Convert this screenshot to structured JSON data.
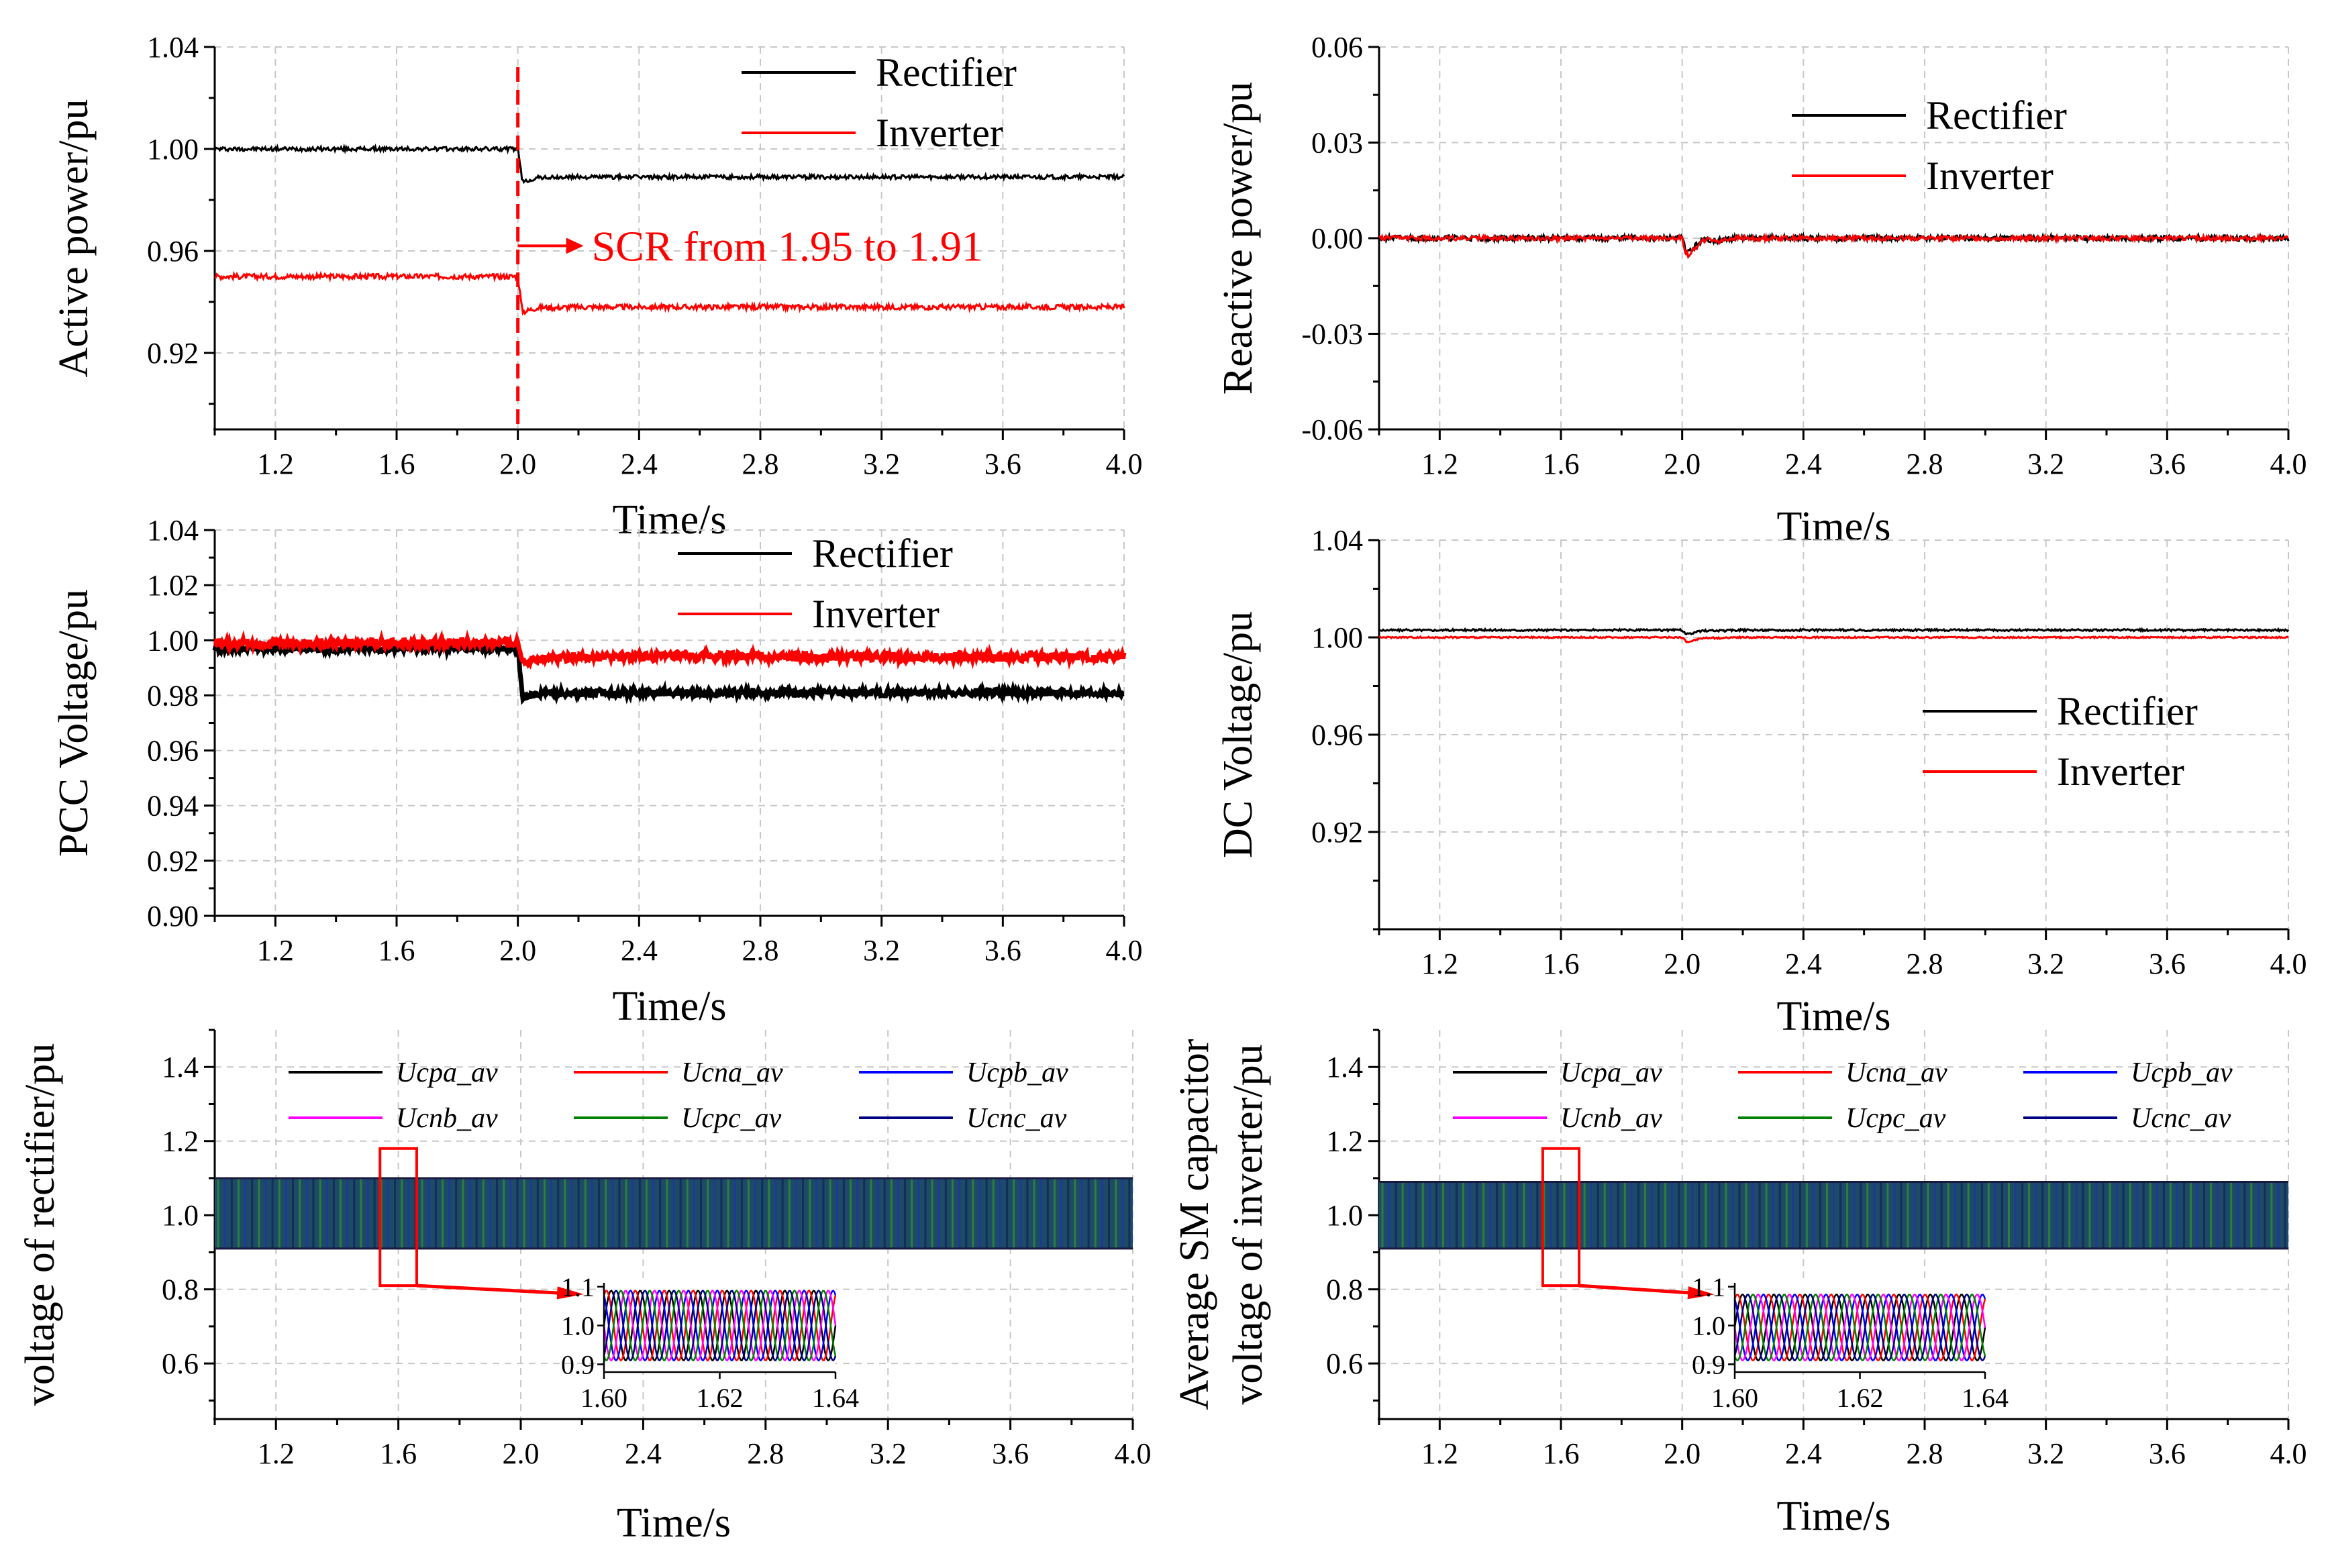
{
  "figure": {
    "panel_count": 6
  },
  "chart_data": [
    {
      "id": "p1",
      "type": "line",
      "xlabel": "Time/s",
      "ylabel": "Active power/pu",
      "xlim": [
        1.0,
        4.0
      ],
      "ylim": [
        0.89,
        1.04
      ],
      "xticks": [
        1.2,
        1.6,
        2.0,
        2.4,
        2.8,
        3.2,
        3.6,
        4.0
      ],
      "yticks": [
        0.92,
        0.96,
        1.0,
        1.04
      ],
      "x_decimals": 1,
      "y_decimals": 2,
      "legend_position": "top-right",
      "annotation": {
        "text": "SCR from 1.95 to 1.91",
        "x": 2.0,
        "color": "#ff0000"
      },
      "series": [
        {
          "name": "Rectifier",
          "color": "#000000",
          "before": 1.0,
          "after": 0.989,
          "dip": 0.987,
          "t0": 2.0,
          "noise": 0.0008
        },
        {
          "name": "Inverter",
          "color": "#ff0000",
          "before": 0.95,
          "after": 0.938,
          "dip": 0.936,
          "t0": 2.0,
          "noise": 0.001
        }
      ]
    },
    {
      "id": "p2",
      "type": "line",
      "xlabel": "Time/s",
      "ylabel": "Reactive power/pu",
      "xlim": [
        1.0,
        4.0
      ],
      "ylim": [
        -0.06,
        0.06
      ],
      "xticks": [
        1.2,
        1.6,
        2.0,
        2.4,
        2.8,
        3.2,
        3.6,
        4.0
      ],
      "yticks": [
        -0.06,
        -0.03,
        0.0,
        0.03,
        0.06
      ],
      "x_decimals": 1,
      "y_decimals": 2,
      "legend_position": "top-center",
      "series": [
        {
          "name": "Rectifier",
          "color": "#000000",
          "before": 0.0,
          "after": 0.0,
          "dip": -0.005,
          "t0": 2.0,
          "noise": 0.0009
        },
        {
          "name": "Inverter",
          "color": "#ff0000",
          "before": 0.0,
          "after": 0.0,
          "dip": -0.006,
          "t0": 2.0,
          "noise": 0.0007
        }
      ]
    },
    {
      "id": "p3",
      "type": "line",
      "xlabel": "Time/s",
      "ylabel": "PCC Voltage/pu",
      "xlim": [
        1.0,
        4.0
      ],
      "ylim": [
        0.9,
        1.04
      ],
      "xticks": [
        1.2,
        1.6,
        2.0,
        2.4,
        2.8,
        3.2,
        3.6,
        4.0
      ],
      "yticks": [
        0.9,
        0.92,
        0.94,
        0.96,
        0.98,
        1.0,
        1.02,
        1.04
      ],
      "x_decimals": 1,
      "y_decimals": 2,
      "legend_position": "top-center",
      "series": [
        {
          "name": "Rectifier",
          "color": "#000000",
          "before": 0.997,
          "after": 0.981,
          "dip": 0.979,
          "t0": 2.0,
          "noise": 0.0012
        },
        {
          "name": "Inverter",
          "color": "#ff0000",
          "before": 0.999,
          "after": 0.994,
          "dip": 0.992,
          "t0": 2.0,
          "noise": 0.0016
        }
      ]
    },
    {
      "id": "p4",
      "type": "line",
      "xlabel": "Time/s",
      "ylabel": "DC Voltage/pu",
      "xlim": [
        1.0,
        4.0
      ],
      "ylim": [
        0.88,
        1.04
      ],
      "xticks": [
        1.2,
        1.6,
        2.0,
        2.4,
        2.8,
        3.2,
        3.6,
        4.0
      ],
      "yticks": [
        0.92,
        0.96,
        1.0,
        1.04
      ],
      "x_decimals": 1,
      "y_decimals": 2,
      "legend_position": "center-right",
      "series": [
        {
          "name": "Rectifier",
          "color": "#000000",
          "before": 1.003,
          "after": 1.003,
          "dip": 1.001,
          "t0": 2.0,
          "noise": 0.0004
        },
        {
          "name": "Inverter",
          "color": "#ff0000",
          "before": 1.0,
          "after": 1.0,
          "dip": 0.998,
          "t0": 2.0,
          "noise": 0.0003
        }
      ]
    },
    {
      "id": "p5",
      "type": "line",
      "xlabel": "Time/s",
      "ylabel": "voltage of rectifier/pu",
      "xlim": [
        1.0,
        4.0
      ],
      "ylim": [
        0.45,
        1.5
      ],
      "xticks": [
        1.2,
        1.6,
        2.0,
        2.4,
        2.8,
        3.2,
        3.6,
        4.0
      ],
      "yticks": [
        0.6,
        0.8,
        1.0,
        1.2,
        1.4
      ],
      "x_decimals": 1,
      "y_decimals": 1,
      "legend_position": "top",
      "band": {
        "low": 0.91,
        "high": 1.1
      },
      "zoom_box": {
        "x_range": [
          1.54,
          1.66
        ],
        "y_range": [
          0.81,
          1.18
        ]
      },
      "inset": {
        "xlim": [
          1.6,
          1.64
        ],
        "ylim": [
          0.88,
          1.11
        ],
        "xticks": [
          1.6,
          1.62,
          1.64
        ],
        "yticks": [
          0.9,
          1.0,
          1.1
        ],
        "x_decimals": 2,
        "y_decimals": 1,
        "amplitude": 0.09,
        "center": 1.0,
        "cycles": 8
      },
      "series": [
        {
          "name": "Ucpa_av",
          "color": "#000000"
        },
        {
          "name": "Ucna_av",
          "color": "#ff0000"
        },
        {
          "name": "Ucpb_av",
          "color": "#0000ff"
        },
        {
          "name": "Ucnb_av",
          "color": "#ff00ff"
        },
        {
          "name": "Ucpc_av",
          "color": "#008000"
        },
        {
          "name": "Ucnc_av",
          "color": "#000080"
        }
      ]
    },
    {
      "id": "p6",
      "type": "line",
      "xlabel": "Time/s",
      "ylabel": "Average SM capacitor",
      "ylabel2": "voltage of inverter/pu",
      "xlim": [
        1.0,
        4.0
      ],
      "ylim": [
        0.45,
        1.5
      ],
      "xticks": [
        1.2,
        1.6,
        2.0,
        2.4,
        2.8,
        3.2,
        3.6,
        4.0
      ],
      "yticks": [
        0.6,
        0.8,
        1.0,
        1.2,
        1.4
      ],
      "x_decimals": 1,
      "y_decimals": 1,
      "legend_position": "top",
      "band": {
        "low": 0.91,
        "high": 1.09
      },
      "zoom_box": {
        "x_range": [
          1.54,
          1.66
        ],
        "y_range": [
          0.81,
          1.18
        ]
      },
      "inset": {
        "xlim": [
          1.6,
          1.64
        ],
        "ylim": [
          0.88,
          1.11
        ],
        "xticks": [
          1.6,
          1.62,
          1.64
        ],
        "yticks": [
          0.9,
          1.0,
          1.1
        ],
        "x_decimals": 2,
        "y_decimals": 1,
        "amplitude": 0.085,
        "center": 0.995,
        "cycles": 8
      },
      "series": [
        {
          "name": "Ucpa_av",
          "color": "#000000"
        },
        {
          "name": "Ucna_av",
          "color": "#ff0000"
        },
        {
          "name": "Ucpb_av",
          "color": "#0000ff"
        },
        {
          "name": "Ucnb_av",
          "color": "#ff00ff"
        },
        {
          "name": "Ucpc_av",
          "color": "#008000"
        },
        {
          "name": "Ucnc_av",
          "color": "#000080"
        }
      ]
    }
  ]
}
